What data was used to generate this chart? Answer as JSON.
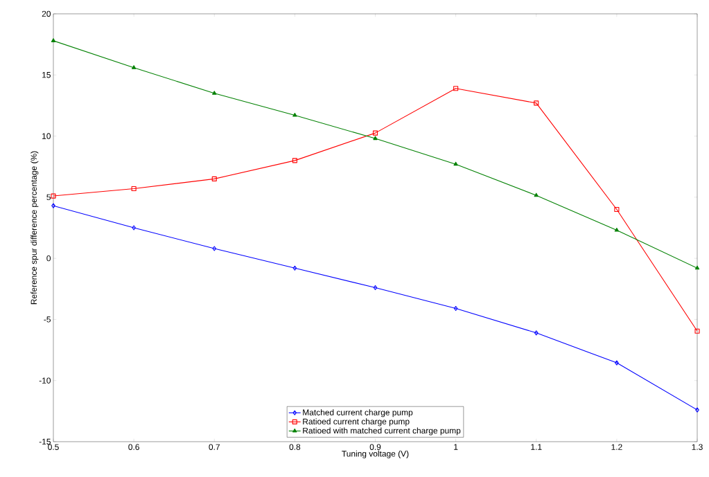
{
  "chart_data": {
    "type": "line",
    "xlabel": "Tuning voltage (V)",
    "ylabel": "Reference spur difference percentage (%)",
    "x": [
      0.5,
      0.6,
      0.7,
      0.8,
      0.9,
      1.0,
      1.1,
      1.2,
      1.3
    ],
    "series": [
      {
        "name": "Matched current charge pump",
        "color": "#0000ff",
        "marker": "diamond",
        "values": [
          4.3,
          2.5,
          0.8,
          -0.8,
          -2.4,
          -4.1,
          -6.1,
          -8.55,
          -12.4
        ]
      },
      {
        "name": "Ratioed current charge pump",
        "color": "#ff0000",
        "marker": "square",
        "values": [
          5.1,
          5.7,
          6.5,
          8.0,
          10.25,
          13.9,
          12.7,
          4.0,
          -5.95
        ]
      },
      {
        "name": "Ratioed with matched current charge pump",
        "color": "#008000",
        "marker": "triangle",
        "values": [
          17.8,
          15.6,
          13.5,
          11.7,
          9.8,
          7.7,
          5.15,
          2.3,
          -0.8
        ]
      }
    ],
    "xlim": [
      0.5,
      1.3
    ],
    "xticks": [
      0.5,
      0.6,
      0.7,
      0.8,
      0.9,
      1,
      1.1,
      1.2,
      1.3
    ],
    "ylim": [
      -15,
      20
    ],
    "yticks": [
      -15,
      -10,
      -5,
      0,
      5,
      10,
      15,
      20
    ],
    "grid": false,
    "legend": "bottom",
    "line_style": "solid"
  }
}
